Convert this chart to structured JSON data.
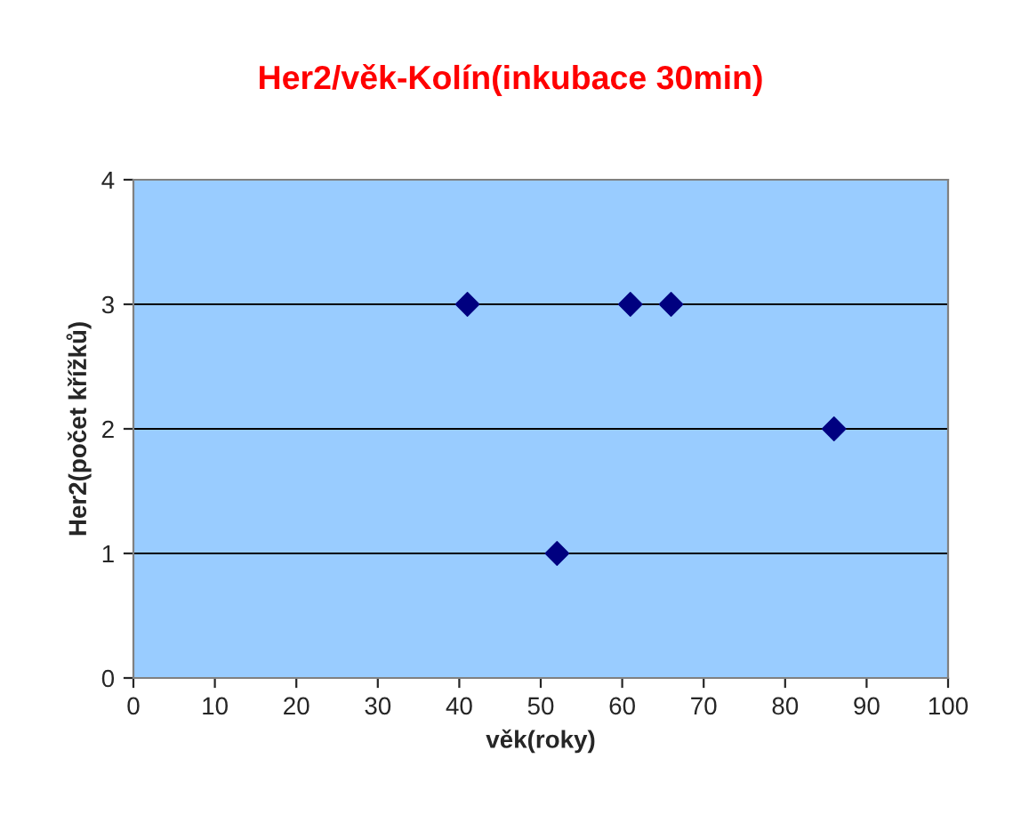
{
  "chart_data": {
    "type": "scatter",
    "title": "Her2/věk-Kolín(inkubace 30min)",
    "xlabel": "věk(roky)",
    "ylabel": "Her2(počet křížků)",
    "x": [
      41,
      52,
      61,
      66,
      86
    ],
    "series": [
      {
        "color": "#000080",
        "values": [
          3,
          1,
          3,
          3,
          2
        ]
      }
    ],
    "xlim": [
      0,
      100
    ],
    "xticks": [
      0,
      10,
      20,
      30,
      40,
      50,
      60,
      70,
      80,
      90,
      100
    ],
    "ylim": [
      0,
      4
    ],
    "yticks": [
      0,
      1,
      2,
      3,
      4
    ],
    "grid": "y",
    "marker": "diamond",
    "legend": false
  }
}
